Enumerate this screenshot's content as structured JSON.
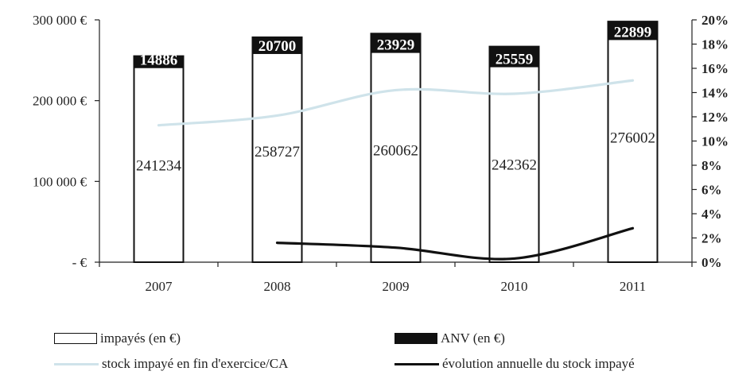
{
  "chart_data": {
    "type": "bar",
    "categories": [
      "2007",
      "2008",
      "2009",
      "2010",
      "2011"
    ],
    "series": [
      {
        "name": "impayés (en €)",
        "kind": "bar",
        "axis": "left",
        "values": [
          241234,
          258727,
          260062,
          242362,
          276002
        ],
        "color": "#ffffff"
      },
      {
        "name": "ANV (en €)",
        "kind": "bar-stacked",
        "axis": "left",
        "values": [
          14886,
          20700,
          23929,
          25559,
          22899
        ],
        "color": "#111111"
      },
      {
        "name": "stock impayé en fin d'exercice/CA",
        "kind": "line",
        "axis": "right",
        "values": [
          11.3,
          12.1,
          14.2,
          13.9,
          15.0
        ],
        "color": "#cfe3ea"
      },
      {
        "name": "évolution annuelle du stock impayé",
        "kind": "line",
        "axis": "right",
        "values": [
          null,
          1.6,
          1.2,
          0.3,
          2.8
        ],
        "color": "#111111"
      }
    ],
    "y_left": {
      "min": 0,
      "max": 300000,
      "ticks": [
        0,
        100000,
        200000,
        300000
      ],
      "tick_labels": [
        "- €",
        "100 000 €",
        "200 000 €",
        "300 000 €"
      ]
    },
    "y_right": {
      "min": 0,
      "max": 20,
      "ticks": [
        0,
        2,
        4,
        6,
        8,
        10,
        12,
        14,
        16,
        18,
        20
      ],
      "tick_labels": [
        "0%",
        "2%",
        "4%",
        "6%",
        "8%",
        "10%",
        "12%",
        "14%",
        "16%",
        "18%",
        "20%"
      ]
    },
    "bar_labels": [
      "241234",
      "258727",
      "260062",
      "242362",
      "276002"
    ],
    "anv_labels": [
      "14886",
      "20700",
      "23929",
      "25559",
      "22899"
    ],
    "legend": [
      {
        "key": "impayes",
        "label": "impayés (en €)"
      },
      {
        "key": "anv",
        "label": "ANV (en €)"
      },
      {
        "key": "stock",
        "label": "stock impayé en fin d'exercice/CA"
      },
      {
        "key": "evolution",
        "label": "évolution annuelle du stock impayé"
      }
    ],
    "legend_position": "bottom",
    "grid": false
  }
}
